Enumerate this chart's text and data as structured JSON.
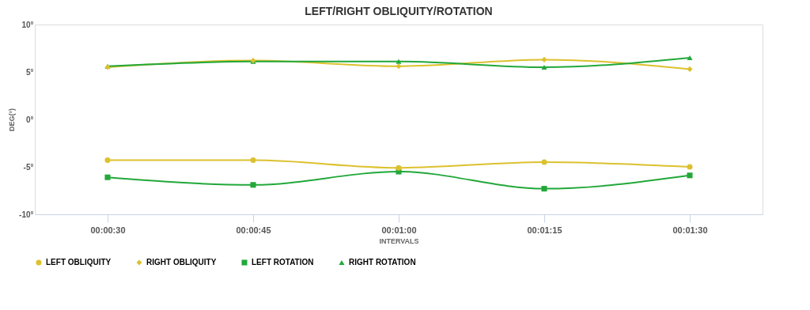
{
  "chart_data": {
    "type": "line",
    "title": "LEFT/RIGHT OBLIQUITY/ROTATION",
    "xlabel": "INTERVALS",
    "ylabel": "DEG(°)",
    "categories": [
      "00:00:30",
      "00:00:45",
      "00:01:00",
      "00:01:15",
      "00:01:30"
    ],
    "series": [
      {
        "name": "LEFT OBLIQUITY",
        "color": "#dcc12e",
        "marker": "circle",
        "values": [
          -4.3,
          -4.3,
          -5.1,
          -4.5,
          -5.0
        ]
      },
      {
        "name": "RIGHT OBLIQUITY",
        "color": "#dcc12e",
        "marker": "diamond",
        "values": [
          5.5,
          6.2,
          5.6,
          6.3,
          5.3
        ]
      },
      {
        "name": "LEFT ROTATION",
        "color": "#22a83a",
        "marker": "square",
        "values": [
          -6.1,
          -6.9,
          -5.5,
          -7.3,
          -5.9
        ]
      },
      {
        "name": "RIGHT ROTATION",
        "color": "#22a83a",
        "marker": "triangle",
        "values": [
          5.6,
          6.1,
          6.1,
          5.5,
          6.5
        ]
      }
    ],
    "ylim": [
      -10,
      10
    ],
    "yticks": [
      {
        "value": -10,
        "label": "-10°"
      },
      {
        "value": -5,
        "label": "-5°"
      },
      {
        "value": 0,
        "label": "0°"
      },
      {
        "value": 5,
        "label": "5°"
      },
      {
        "value": 10,
        "label": "10°"
      }
    ],
    "grid": false,
    "legend": "bottom"
  }
}
